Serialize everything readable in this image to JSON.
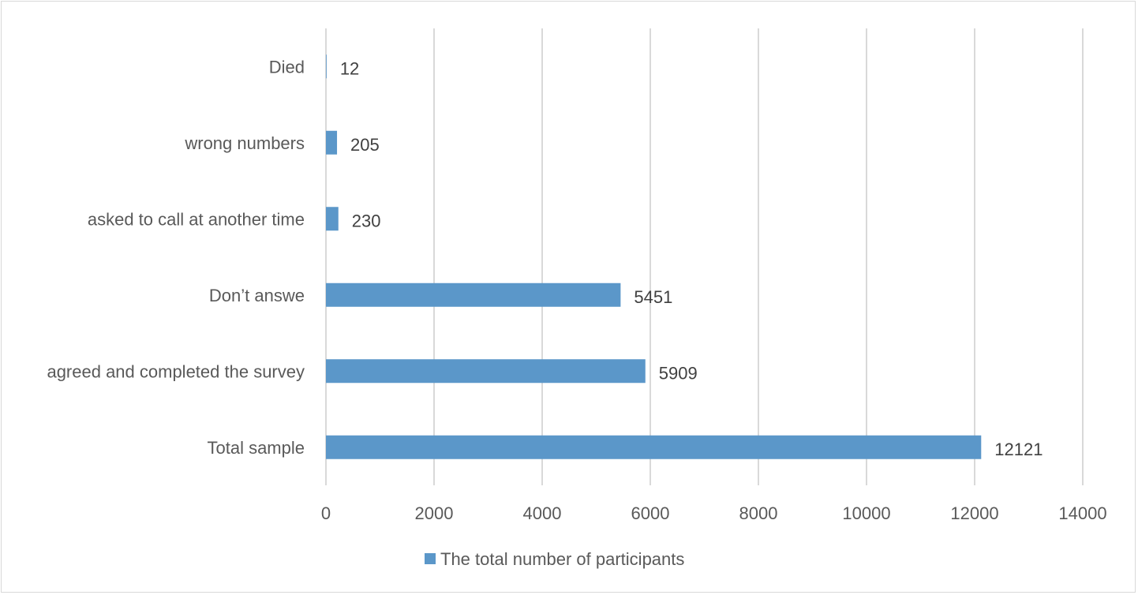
{
  "chart_data": {
    "type": "bar",
    "orientation": "horizontal",
    "title": "",
    "xlabel": "",
    "ylabel": "",
    "categories": [
      "Total sample",
      "agreed and completed the survey",
      "Don’t answe",
      "asked to call at another time",
      "wrong numbers",
      "Died"
    ],
    "series": [
      {
        "name": "The total number of participants",
        "values": [
          12121,
          5909,
          5451,
          230,
          205,
          12
        ],
        "color": "#5b97c9"
      }
    ],
    "data_labels": [
      "12121",
      "5909",
      "5451",
      "230",
      "205",
      "12"
    ],
    "xlim": [
      0,
      14000
    ],
    "x_ticks": [
      "0",
      "2000",
      "4000",
      "6000",
      "8000",
      "10000",
      "12000",
      "14000"
    ],
    "grid": "vertical",
    "grid_color": "#d9d9d9",
    "legend_position": "bottom"
  }
}
